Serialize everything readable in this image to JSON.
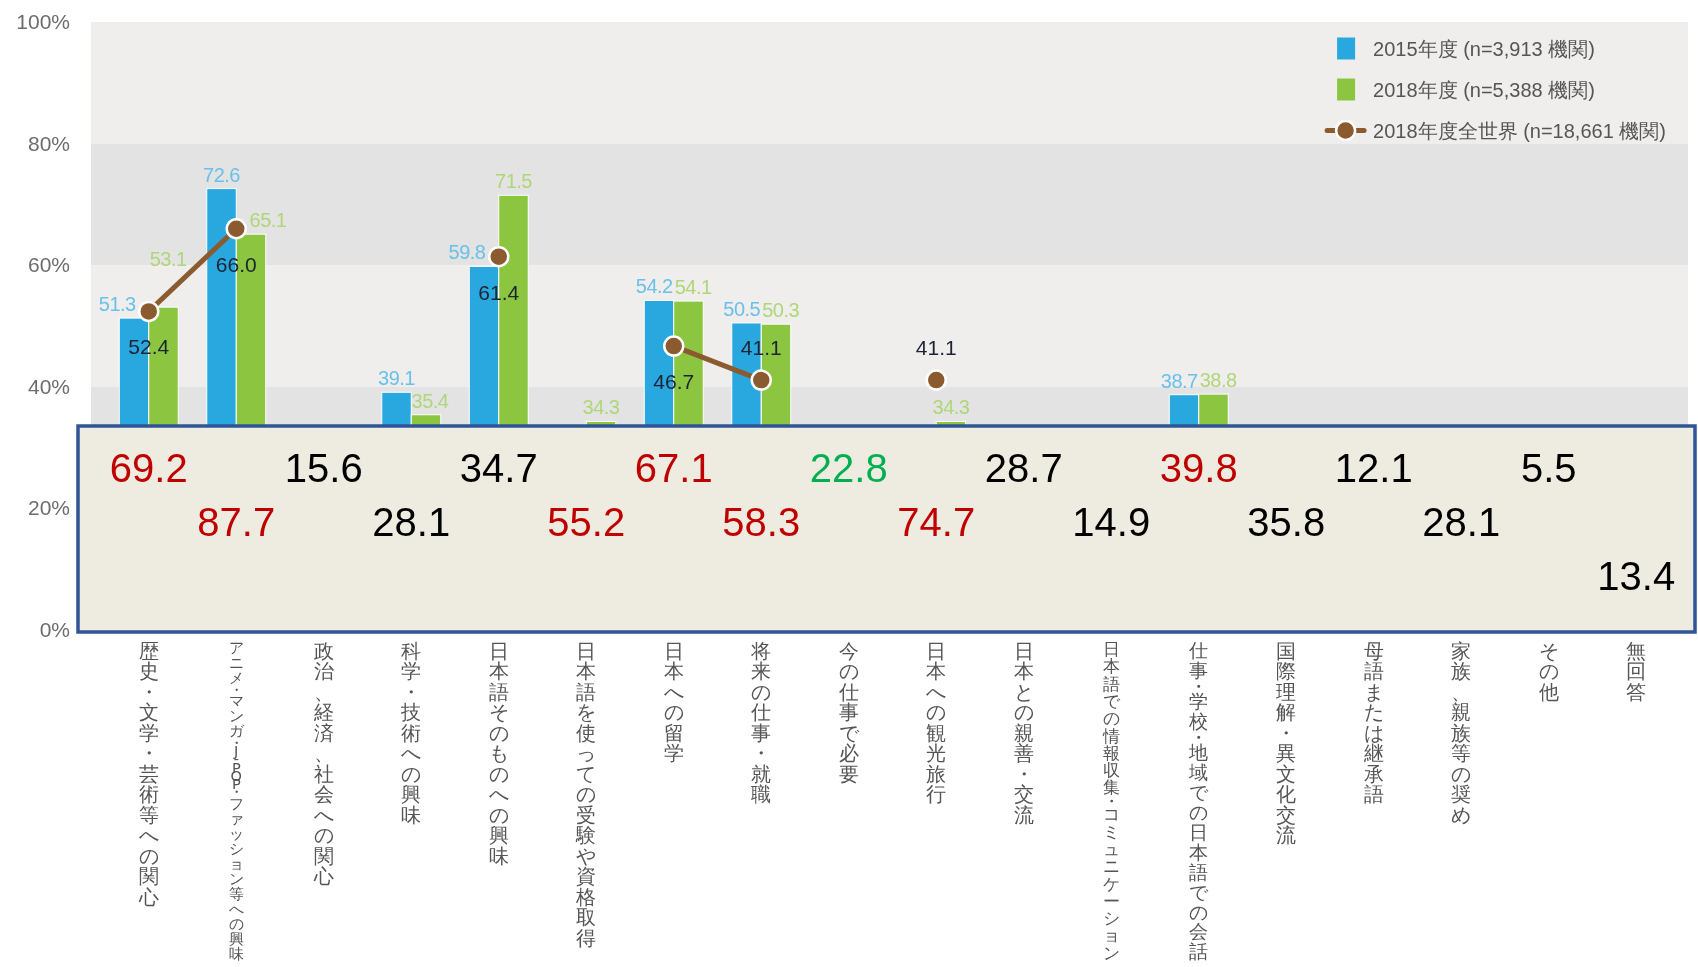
{
  "chart_data": [
    {
      "type": "bar",
      "categories": [
        "歴史・文学・芸術等への関心",
        "アニメ・マンガ・J-POP・ファッション等への興味",
        "政治、経済、社会への関心",
        "科学・技術への興味",
        "日本語そのものへの興味",
        "日本語を使っての受験や資格取得",
        "日本への留学",
        "将来の仕事・就職",
        "今の仕事で必要",
        "日本への観光旅行",
        "日本との親善・交流",
        "日本語での情報収集・コミュニケーション",
        "仕事・学校・地域での日本語での会話",
        "国際理解・異文化交流",
        "母語または継承語",
        "家族、親族等の奨め",
        "その他",
        "無回答"
      ],
      "series": [
        {
          "name": "2015年度 (n=3,913 機関)",
          "color": "#29a7df",
          "values": [
            51.3,
            72.6,
            null,
            39.1,
            59.8,
            null,
            54.2,
            50.5,
            null,
            null,
            null,
            null,
            38.7,
            null,
            null,
            null,
            null,
            null
          ],
          "value_labels": [
            "51.3",
            "72.6",
            null,
            "39.1",
            "59.8",
            null,
            "54.2",
            "50.5",
            null,
            null,
            null,
            null,
            "38.7",
            null,
            null,
            null,
            null,
            null
          ]
        },
        {
          "name": "2018年度 (n=5,388 機関)",
          "color": "#8cc540",
          "values": [
            53.1,
            65.1,
            null,
            35.4,
            71.5,
            34.3,
            54.1,
            50.3,
            null,
            34.3,
            null,
            null,
            38.8,
            null,
            null,
            null,
            null,
            null
          ],
          "value_labels": [
            "53.1",
            "65.1",
            null,
            "35.4",
            "71.5",
            "34.3",
            "54.1",
            "50.3",
            null,
            "34.3",
            null,
            null,
            "38.8",
            null,
            null,
            null,
            null,
            null
          ]
        },
        {
          "name": "2018年度全世界 (n=18,661 機関)",
          "type": "line",
          "color": "#8b5a2e",
          "values": [
            52.4,
            66.0,
            null,
            null,
            61.4,
            null,
            46.7,
            41.1,
            null,
            41.1,
            null,
            null,
            null,
            null,
            null,
            null,
            null,
            null
          ],
          "value_labels": [
            "52.4",
            "66.0",
            null,
            null,
            "61.4",
            null,
            "46.7",
            "41.1",
            null,
            "41.1",
            null,
            null,
            null,
            null,
            null,
            null,
            null,
            null
          ]
        }
      ],
      "ylim": [
        0,
        100
      ],
      "yticks": [
        {
          "value": 0,
          "label": "0%"
        },
        {
          "value": 20,
          "label": "20%"
        },
        {
          "value": 40,
          "label": "40%"
        },
        {
          "value": 60,
          "label": "60%"
        },
        {
          "value": 80,
          "label": "80%"
        },
        {
          "value": 100,
          "label": "100%"
        }
      ],
      "bands": [
        {
          "axis": "y",
          "from": 80,
          "to": 100,
          "color": "#efeeed"
        },
        {
          "axis": "y",
          "from": 60,
          "to": 80,
          "color": "#e3e3e3"
        },
        {
          "axis": "y",
          "from": 40,
          "to": 60,
          "color": "#efeeed"
        },
        {
          "axis": "y",
          "from": 20,
          "to": 40,
          "color": "#e3e3e3"
        }
      ],
      "marker": "circle",
      "legend": "top right"
    },
    {
      "type": "other",
      "annotations": [
        "69.2",
        "87.7",
        "15.6",
        "28.1",
        "34.7",
        "55.2",
        "67.1",
        "58.3",
        "22.8",
        "74.7",
        "28.7",
        "14.9",
        "39.8",
        "35.8",
        "12.1",
        "28.1",
        "5.5",
        "13.4"
      ],
      "colors": [
        "#c00000",
        "#c00000",
        "#000000",
        "#000000",
        "#000000",
        "#c00000",
        "#c00000",
        "#c00000",
        "#00b050",
        "#c00000",
        "#000000",
        "#000000",
        "#c00000",
        "#000000",
        "#000000",
        "#000000",
        "#000000",
        "#000000"
      ]
    }
  ]
}
